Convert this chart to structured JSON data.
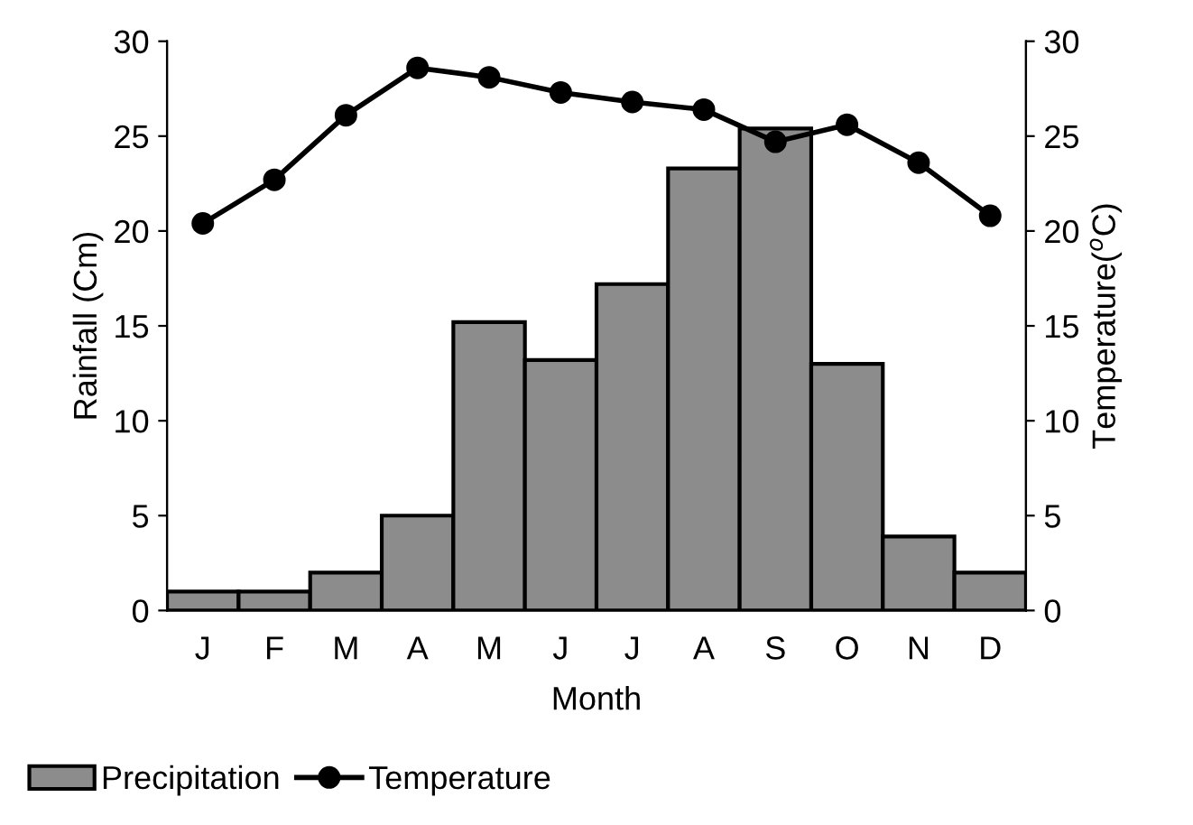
{
  "chart_data": {
    "type": "bar",
    "categories": [
      "J",
      "F",
      "M",
      "A",
      "M",
      "J",
      "J",
      "A",
      "S",
      "O",
      "N",
      "D"
    ],
    "xlabel": "Month",
    "ylabel": "Rainfall (Cm)",
    "y2label": "Temperature($^{o}$C)",
    "ylim": [
      0,
      30
    ],
    "yticks": [
      0,
      5,
      10,
      15,
      20,
      25,
      30
    ],
    "y2lim": [
      0,
      30
    ],
    "y2ticks": [
      0,
      5,
      10,
      15,
      20,
      25,
      30
    ],
    "legend": "bottom",
    "grid": false,
    "marker": "circle",
    "series": [
      {
        "name": "Precipitation",
        "color": "#8c8c8c",
        "values": [
          1.0,
          1.0,
          2.0,
          5.0,
          15.2,
          13.2,
          17.2,
          23.3,
          25.4,
          13.0,
          3.9,
          2.0
        ]
      },
      {
        "name": "Temperature",
        "type": "line",
        "axis": "y2",
        "color": "#000000",
        "values": [
          20.4,
          22.7,
          26.1,
          28.6,
          28.1,
          27.3,
          26.8,
          26.4,
          24.7,
          25.6,
          23.6,
          20.8
        ]
      }
    ]
  }
}
